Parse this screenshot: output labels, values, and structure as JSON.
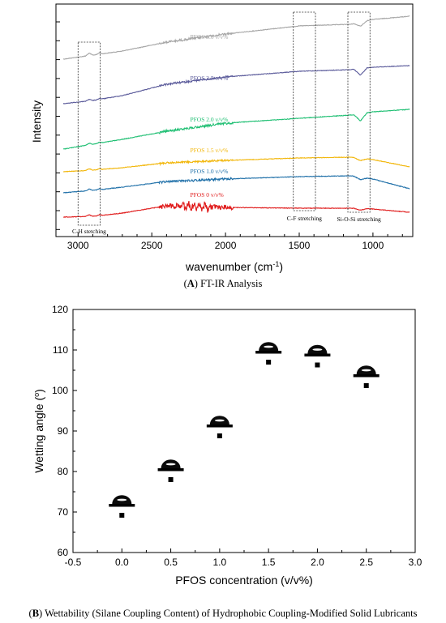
{
  "chart_data": [
    {
      "type": "line",
      "xlabel": "wavenumber (cm",
      "xlabel_sup": "-1",
      "xlabel_end": ")",
      "ylabel": "Intensity",
      "xlim": [
        3150,
        730
      ],
      "x_reversed": true,
      "x_ticks": [
        "3000",
        "2500",
        "2000",
        "1500",
        "1000"
      ],
      "y_ticklabels_shown": false,
      "caption_letter": "A",
      "caption_text": " FT-IR Analysis",
      "series": [
        {
          "name": "PFOS 3.0 v/v%",
          "color": "#a6a6a6"
        },
        {
          "name": "PFOS 2.5 v/v%",
          "color": "#5a5a9a"
        },
        {
          "name": "PFOS 2.0 v/v%",
          "color": "#1fbf73"
        },
        {
          "name": "PFOS 1.5 v/v%",
          "color": "#f2b70c"
        },
        {
          "name": "PFOS 1.0 v/v%",
          "color": "#1e6fa8"
        },
        {
          "name": "PFOS 0 v/v%",
          "color": "#e01b1b"
        }
      ],
      "annotations": [
        {
          "label": "C-H stetching",
          "x_range": [
            3000,
            2850
          ]
        },
        {
          "label": "C-F stretching",
          "x_range": [
            1540,
            1390
          ]
        },
        {
          "label": "Si-O-Si stretching",
          "x_range": [
            1170,
            1020
          ]
        }
      ]
    },
    {
      "type": "scatter",
      "xlabel": "PFOS concentration (v/v%)",
      "ylabel": "Wetting angle (",
      "ylabel_sup": "o",
      "ylabel_end": ")",
      "xlim": [
        -0.5,
        3.0
      ],
      "ylim": [
        60,
        120
      ],
      "x_ticks": [
        "-0.5",
        "0.0",
        "0.5",
        "1.0",
        "1.5",
        "2.0",
        "2.5",
        "3.0"
      ],
      "y_ticks": [
        "60",
        "70",
        "80",
        "90",
        "100",
        "110",
        "120"
      ],
      "x": [
        0.0,
        0.5,
        1.0,
        1.5,
        2.0,
        2.5
      ],
      "y": [
        69.2,
        78.0,
        88.8,
        107.0,
        106.3,
        101.2
      ],
      "caption_letter": "B",
      "caption_text": " Wettability (Silane Coupling Content) of Hydrophobic Coupling-Modified Solid Lubricants"
    }
  ]
}
